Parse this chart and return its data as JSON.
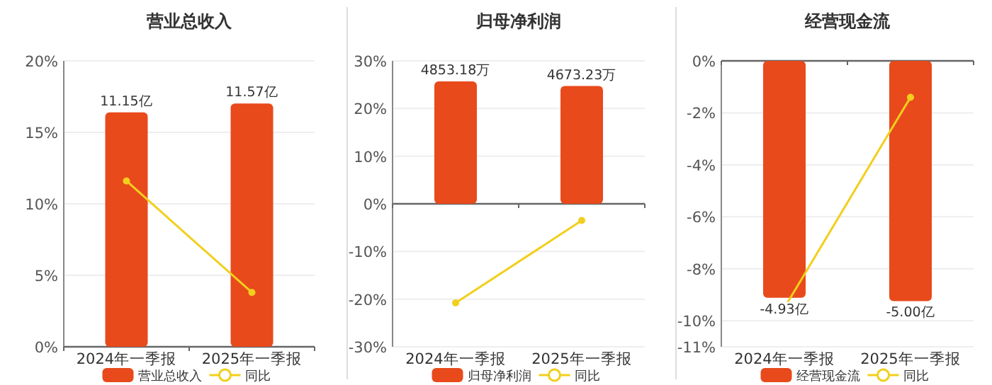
{
  "chart_data": [
    {
      "type": "bar",
      "title": "营业总收入",
      "categories": [
        "2024年一季报",
        "2025年一季报"
      ],
      "ylim": [
        0,
        20
      ],
      "yticks": [
        {
          "value": 0,
          "label": "0%"
        },
        {
          "value": 5,
          "label": "5%"
        },
        {
          "value": 10,
          "label": "10%"
        },
        {
          "value": 15,
          "label": "15%"
        },
        {
          "value": 20,
          "label": "20%"
        }
      ],
      "y2lim": [
        0,
        13.6
      ],
      "grid": "y",
      "legend": "bottom",
      "series": [
        {
          "name": "营业总收入",
          "axis": "y2",
          "color": "#e84a1c",
          "values": [
            11.15,
            11.57
          ],
          "value_labels": [
            "11.15亿",
            "11.57亿"
          ]
        },
        {
          "name": "同比",
          "type": "line",
          "axis": "y",
          "color": "#f2cf1c",
          "marker": "circle",
          "values": [
            11.6,
            3.8
          ]
        }
      ]
    },
    {
      "type": "bar",
      "title": "归母净利润",
      "categories": [
        "2024年一季报",
        "2025年一季报"
      ],
      "ylim": [
        -30,
        30
      ],
      "yticks": [
        {
          "value": -30,
          "label": "-30%"
        },
        {
          "value": -20,
          "label": "-20%"
        },
        {
          "value": -10,
          "label": "-10%"
        },
        {
          "value": 0,
          "label": "0%"
        },
        {
          "value": 10,
          "label": "10%"
        },
        {
          "value": 20,
          "label": "20%"
        },
        {
          "value": 30,
          "label": "30%"
        }
      ],
      "y2lim": [
        -5670,
        5670
      ],
      "grid": "y",
      "legend": "bottom",
      "series": [
        {
          "name": "归母净利润",
          "axis": "y2",
          "color": "#e84a1c",
          "values": [
            4853.18,
            4673.23
          ],
          "value_labels": [
            "4853.18万",
            "4673.23万"
          ]
        },
        {
          "name": "同比",
          "type": "line",
          "axis": "y",
          "color": "#f2cf1c",
          "marker": "circle",
          "values": [
            -20.8,
            -3.5
          ]
        }
      ]
    },
    {
      "type": "bar",
      "title": "经营现金流",
      "categories": [
        "2024年一季报",
        "2025年一季报"
      ],
      "ylim": [
        -11,
        0
      ],
      "yticks": [
        {
          "value": -11,
          "label": "-11%"
        },
        {
          "value": -10,
          "label": "-10%"
        },
        {
          "value": -8,
          "label": "-8%"
        },
        {
          "value": -6,
          "label": "-6%"
        },
        {
          "value": -4,
          "label": "-4%"
        },
        {
          "value": -2,
          "label": "-2%"
        },
        {
          "value": 0,
          "label": "0%"
        }
      ],
      "y2lim": [
        -5.95,
        0
      ],
      "grid": "y",
      "legend": "bottom",
      "series": [
        {
          "name": "经营现金流",
          "axis": "y2",
          "color": "#e84a1c",
          "values": [
            -4.93,
            -5.0
          ],
          "value_labels": [
            "-4.93亿",
            "-5.00亿"
          ]
        },
        {
          "name": "同比",
          "type": "line",
          "axis": "y",
          "color": "#f2cf1c",
          "marker": "circle",
          "values": [
            -9.5,
            -1.4
          ]
        }
      ]
    }
  ]
}
